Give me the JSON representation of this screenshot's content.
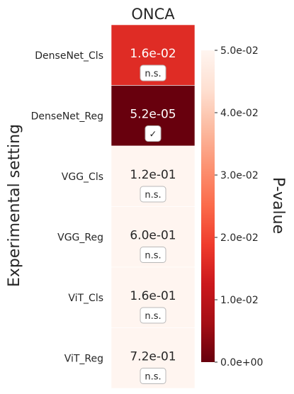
{
  "chart_data": {
    "type": "heatmap",
    "title": "ONCA",
    "ylabel": "Experimental setting",
    "colorbar_label": "P-value",
    "colorbar_range": [
      0,
      0.05
    ],
    "colorbar_ticks": [
      "0.0e+00",
      "1.0e-02",
      "2.0e-02",
      "3.0e-02",
      "4.0e-02",
      "5.0e-02"
    ],
    "colormap": "Reds_r",
    "rows": [
      {
        "label": "DenseNet_Cls",
        "value": 0.016,
        "value_text": "1.6e-02",
        "badge": "n.s."
      },
      {
        "label": "DenseNet_Reg",
        "value": 5.2e-05,
        "value_text": "5.2e-05",
        "badge": "✓"
      },
      {
        "label": "VGG_Cls",
        "value": 0.12,
        "value_text": "1.2e-01",
        "badge": "n.s."
      },
      {
        "label": "VGG_Reg",
        "value": 0.6,
        "value_text": "6.0e-01",
        "badge": "n.s."
      },
      {
        "label": "ViT_Cls",
        "value": 0.16,
        "value_text": "1.6e-01",
        "badge": "n.s."
      },
      {
        "label": "ViT_Reg",
        "value": 0.72,
        "value_text": "7.2e-01",
        "badge": "n.s."
      }
    ]
  }
}
